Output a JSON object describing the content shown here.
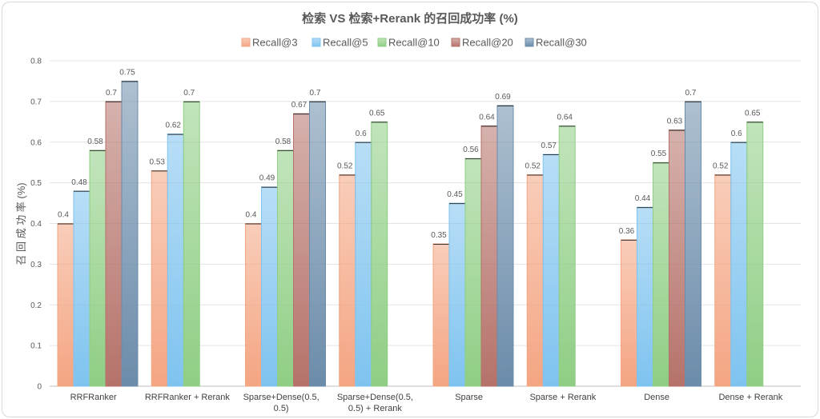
{
  "chart_data": {
    "type": "bar",
    "title": "检索 VS 检索+Rerank 的召回成功率 (%)",
    "ylabel": "召 回 成 功 率 (%)",
    "xlabel": "",
    "ylim": [
      0,
      0.8
    ],
    "yticks": [
      0,
      0.1,
      0.2,
      0.3,
      0.4,
      0.5,
      0.6,
      0.7,
      0.8
    ],
    "grid": true,
    "legend_position": "top",
    "categories": [
      [
        "RRFRanker"
      ],
      [
        "RRFRanker + Rerank"
      ],
      [
        "Sparse+Dense(0.5,",
        "0.5)"
      ],
      [
        "Sparse+Dense(0.5,",
        "0.5) + Rerank"
      ],
      [
        "Sparse"
      ],
      [
        "Sparse + Rerank"
      ],
      [
        "Dense"
      ],
      [
        "Dense + Rerank"
      ]
    ],
    "series": [
      {
        "name": "Recall@3",
        "color": "#f4a582",
        "values": [
          0.4,
          0.53,
          0.4,
          0.52,
          0.35,
          0.52,
          0.36,
          0.52
        ]
      },
      {
        "name": "Recall@5",
        "color": "#7ec3ef",
        "values": [
          0.48,
          0.62,
          0.49,
          0.6,
          0.45,
          0.57,
          0.44,
          0.6
        ]
      },
      {
        "name": "Recall@10",
        "color": "#8fce84",
        "values": [
          0.58,
          0.7,
          0.58,
          0.65,
          0.56,
          0.64,
          0.55,
          0.65
        ]
      },
      {
        "name": "Recall@20",
        "color": "#b5726a",
        "values": [
          0.7,
          null,
          0.67,
          null,
          0.64,
          null,
          0.63,
          null
        ]
      },
      {
        "name": "Recall@30",
        "color": "#6b8caa",
        "values": [
          0.75,
          null,
          0.7,
          null,
          0.69,
          null,
          0.7,
          null
        ]
      }
    ]
  }
}
